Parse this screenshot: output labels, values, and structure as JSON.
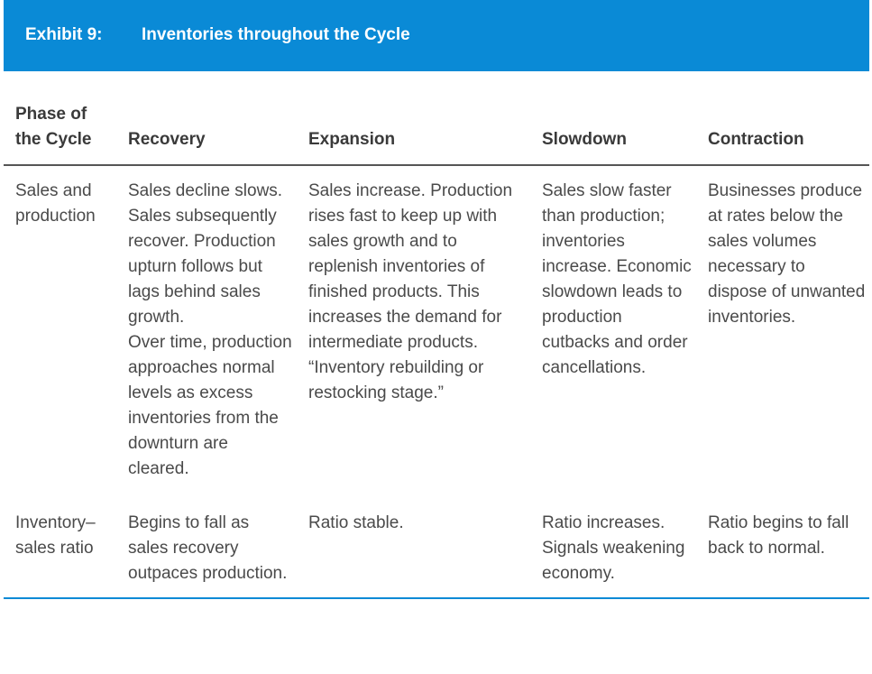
{
  "header": {
    "exhibit_label": "Exhibit 9:",
    "title": "Inventories throughout the Cycle"
  },
  "table": {
    "columns": [
      "Phase of\nthe Cycle",
      "Recovery",
      "Expansion",
      "Slowdown",
      "Contraction"
    ],
    "rows": [
      {
        "label": "Sales and\nproduction",
        "cells": [
          "Sales decline slows. Sales subsequently recover. Production upturn follows but lags behind sales growth.\nOver time, production approaches normal levels as excess inventories from the downturn are cleared.",
          "Sales increase. Production rises fast to keep up with sales growth and to replenish inventories of finished products. This increases the demand for intermediate products. “Inventory rebuilding or restocking stage.”",
          "Sales slow faster than production; inventories increase. Economic slowdown leads to production cutbacks and order cancellations.",
          "Businesses produce at rates below the sales volumes necessary to dispose of unwanted inventories."
        ]
      },
      {
        "label": "Inventory–\nsales ratio",
        "cells": [
          "Begins to fall as sales recovery outpaces production.",
          "Ratio stable.",
          "Ratio increases. Signals weakening economy.",
          "Ratio begins to fall back to normal."
        ]
      }
    ]
  },
  "colors": {
    "header_bg": "#0a8ad6",
    "header_text": "#ffffff",
    "body_text": "#4a4a4a",
    "rule_dark": "#555555",
    "rule_blue": "#0a8ad6"
  }
}
